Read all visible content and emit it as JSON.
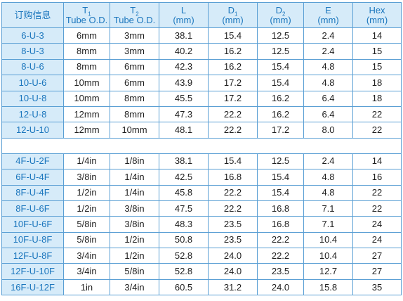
{
  "table": {
    "header": [
      {
        "symbol": "订购信息"
      },
      {
        "symbol": "T",
        "sub": "1",
        "unit": "Tube O.D."
      },
      {
        "symbol": "T",
        "sub": "2",
        "unit": "Tube O.D."
      },
      {
        "symbol": "L",
        "unit": "(mm)"
      },
      {
        "symbol": "D",
        "sub": "1",
        "unit": "(mm)"
      },
      {
        "symbol": "D",
        "sub": "2",
        "unit": "(mm)"
      },
      {
        "symbol": "E",
        "unit": "(mm)"
      },
      {
        "symbol": "Hex",
        "unit": "(mm)"
      }
    ],
    "groups": [
      [
        [
          "6-U-3",
          "6mm",
          "3mm",
          "38.1",
          "15.4",
          "12.5",
          "2.4",
          "14"
        ],
        [
          "8-U-3",
          "8mm",
          "3mm",
          "40.2",
          "16.2",
          "12.5",
          "2.4",
          "15"
        ],
        [
          "8-U-6",
          "8mm",
          "6mm",
          "42.3",
          "16.2",
          "15.4",
          "4.8",
          "15"
        ],
        [
          "10-U-6",
          "10mm",
          "6mm",
          "43.9",
          "17.2",
          "15.4",
          "4.8",
          "18"
        ],
        [
          "10-U-8",
          "10mm",
          "8mm",
          "45.5",
          "17.2",
          "16.2",
          "6.4",
          "18"
        ],
        [
          "12-U-8",
          "12mm",
          "8mm",
          "47.3",
          "22.2",
          "16.2",
          "6.4",
          "22"
        ],
        [
          "12-U-10",
          "12mm",
          "10mm",
          "48.1",
          "22.2",
          "17.2",
          "8.0",
          "22"
        ]
      ],
      [
        [
          "4F-U-2F",
          "1/4in",
          "1/8in",
          "38.1",
          "15.4",
          "12.5",
          "2.4",
          "14"
        ],
        [
          "6F-U-4F",
          "3/8in",
          "1/4in",
          "42.5",
          "16.8",
          "15.4",
          "4.8",
          "16"
        ],
        [
          "8F-U-4F",
          "1/2in",
          "1/4in",
          "45.8",
          "22.2",
          "15.4",
          "4.8",
          "22"
        ],
        [
          "8F-U-6F",
          "1/2in",
          "3/8in",
          "47.5",
          "22.2",
          "16.8",
          "7.1",
          "22"
        ],
        [
          "10F-U-6F",
          "5/8in",
          "3/8in",
          "48.3",
          "23.5",
          "16.8",
          "7.1",
          "24"
        ],
        [
          "10F-U-8F",
          "5/8in",
          "1/2in",
          "50.8",
          "23.5",
          "22.2",
          "10.4",
          "24"
        ],
        [
          "12F-U-8F",
          "3/4in",
          "1/2in",
          "52.8",
          "24.0",
          "22.2",
          "10.4",
          "27"
        ],
        [
          "12F-U-10F",
          "3/4in",
          "5/8in",
          "52.8",
          "24.0",
          "23.5",
          "12.7",
          "27"
        ],
        [
          "16F-U-12F",
          "1in",
          "3/4in",
          "60.5",
          "31.2",
          "24.0",
          "15.8",
          "35"
        ]
      ]
    ]
  }
}
